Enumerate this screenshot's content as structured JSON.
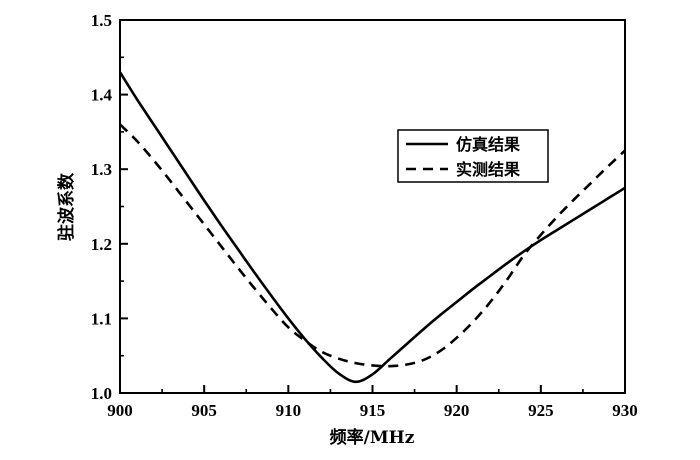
{
  "chart_data": {
    "type": "line",
    "xlabel": "频率/MHz",
    "ylabel": "驻波系数",
    "xlim": [
      900,
      930
    ],
    "ylim": [
      1.0,
      1.5
    ],
    "xticks": [
      900,
      905,
      910,
      915,
      920,
      925,
      930
    ],
    "xtick_labels": [
      "900",
      "905",
      "910",
      "915",
      "920",
      "925",
      "930"
    ],
    "yticks": [
      1.0,
      1.1,
      1.2,
      1.3,
      1.4,
      1.5
    ],
    "ytick_labels": [
      "1.0",
      "1.1",
      "1.2",
      "1.3",
      "1.4",
      "1.5"
    ],
    "grid": false,
    "legend_position": "right",
    "series": [
      {
        "name": "仿真结果",
        "style": "solid",
        "color": "#000000",
        "x": [
          900,
          901,
          902,
          903,
          904,
          905,
          906,
          907,
          908,
          909,
          910,
          911,
          912,
          913,
          914,
          915,
          916,
          917,
          918,
          919,
          920,
          921,
          922,
          923,
          924,
          925,
          926,
          927,
          928,
          929,
          930
        ],
        "y": [
          1.43,
          1.394,
          1.36,
          1.326,
          1.292,
          1.258,
          1.225,
          1.193,
          1.161,
          1.13,
          1.1,
          1.072,
          1.047,
          1.026,
          1.015,
          1.025,
          1.045,
          1.065,
          1.085,
          1.104,
          1.122,
          1.14,
          1.157,
          1.174,
          1.19,
          1.205,
          1.219,
          1.233,
          1.247,
          1.261,
          1.275
        ]
      },
      {
        "name": "实测结果",
        "style": "dashed",
        "color": "#000000",
        "x": [
          900,
          901,
          902,
          903,
          904,
          905,
          906,
          907,
          908,
          909,
          910,
          911,
          912,
          913,
          914,
          915,
          916,
          917,
          918,
          919,
          920,
          921,
          922,
          923,
          924,
          925,
          926,
          927,
          928,
          929,
          930
        ],
        "y": [
          1.36,
          1.338,
          1.312,
          1.284,
          1.255,
          1.226,
          1.197,
          1.168,
          1.14,
          1.113,
          1.088,
          1.07,
          1.055,
          1.046,
          1.04,
          1.037,
          1.036,
          1.038,
          1.044,
          1.056,
          1.074,
          1.096,
          1.122,
          1.152,
          1.185,
          1.212,
          1.237,
          1.26,
          1.282,
          1.304,
          1.325
        ]
      }
    ]
  }
}
